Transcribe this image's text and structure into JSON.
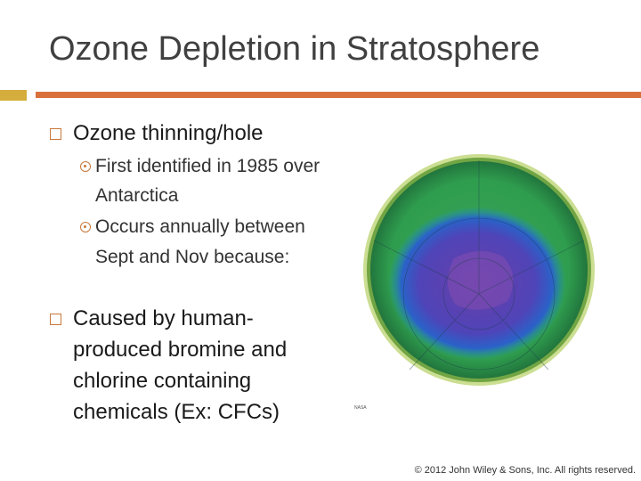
{
  "title": "Ozone Depletion in Stratosphere",
  "bullets": [
    {
      "text": "Ozone thinning/hole",
      "sub": [
        "First identified in 1985 over Antarctica",
        "Occurs annually between Sept and Nov because:"
      ]
    },
    {
      "text": "Caused by human-produced bromine and chlorine containing chemicals (Ex: CFCs)"
    }
  ],
  "image_credit": "NASA",
  "footer": "© 2012 John Wiley & Sons, Inc. All rights reserved."
}
